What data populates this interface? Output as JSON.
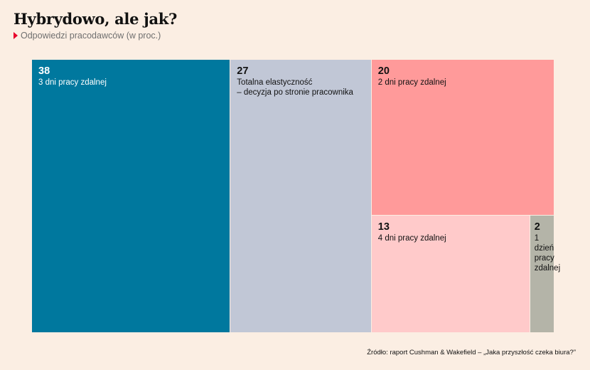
{
  "title": "Hybrydowo, ale jak?",
  "subtitle": "Odpowiedzi pracodawców (w proc.)",
  "source": "Źródło: raport Cushman & Wakefield – „Jaka przyszłość czeka biura?”",
  "colors": {
    "background": "#fbeee3",
    "accent_marker": "#e8002a"
  },
  "chart_data": {
    "type": "treemap",
    "title": "Hybrydowo, ale jak?",
    "subtitle": "Odpowiedzi pracodawców (w proc.)",
    "unit": "proc.",
    "items": [
      {
        "value": 38,
        "label": "3 dni pracy zdalnej",
        "color": "#00789e",
        "text_color": "#ffffff"
      },
      {
        "value": 27,
        "label": "Totalna elastyczność\n– decyzja po stronie pracownika",
        "color": "#c1c7d6",
        "text_color": "#111111"
      },
      {
        "value": 20,
        "label": "2 dni pracy zdalnej",
        "color": "#ff9a9a",
        "text_color": "#111111"
      },
      {
        "value": 13,
        "label": "4 dni pracy zdalnej",
        "color": "#ffcaca",
        "text_color": "#111111"
      },
      {
        "value": 2,
        "label": "1 dzień\npracy\nzdalnej",
        "color": "#b4b4a8",
        "text_color": "#111111"
      }
    ]
  }
}
